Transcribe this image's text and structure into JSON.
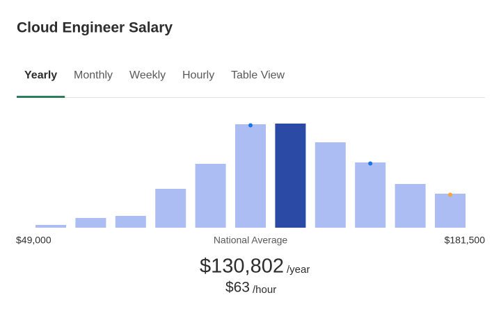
{
  "title": "Cloud Engineer Salary",
  "tabs": [
    "Yearly",
    "Monthly",
    "Weekly",
    "Hourly",
    "Table View"
  ],
  "active_tab": 0,
  "chart_data": {
    "type": "bar",
    "values": [
      4,
      14,
      17,
      56,
      92,
      149,
      150,
      123,
      94,
      63,
      49
    ],
    "ylim": [
      0,
      150
    ],
    "color": "#abbdf3",
    "highlight": {
      "index": 6,
      "color": "#2a4aa6"
    },
    "markers": [
      {
        "index": 5,
        "color": "#1a73e8"
      },
      {
        "index": 8,
        "color": "#1a73e8"
      },
      {
        "index": 10,
        "color": "#f5a53c"
      }
    ],
    "min_label": "$49,000",
    "center_label": "National Average",
    "max_label": "$181,500"
  },
  "average": {
    "yearly": "$130,802",
    "yearly_unit": "/year",
    "hourly": "$63",
    "hourly_unit": "/hour"
  }
}
